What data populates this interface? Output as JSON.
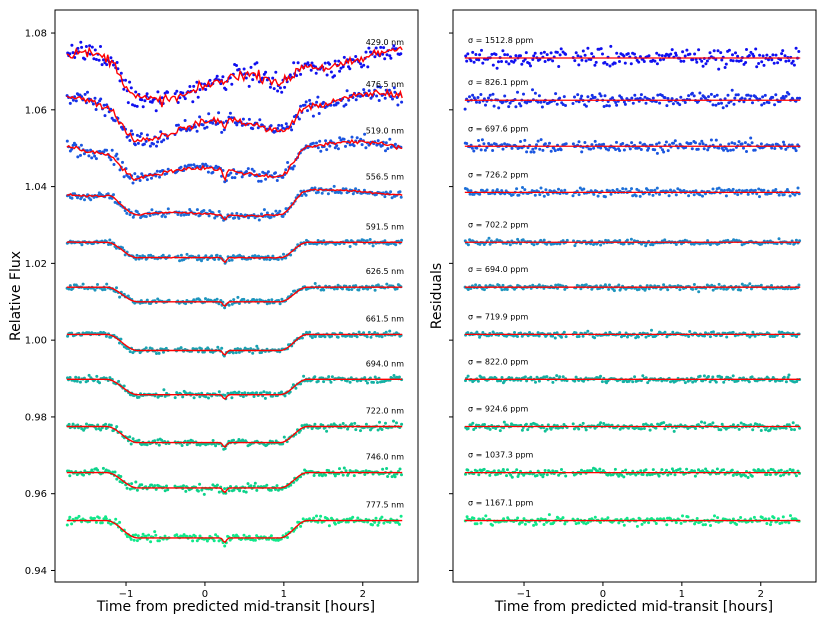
{
  "chart_data": [
    {
      "type": "scatter",
      "title": "",
      "xlabel": "Time from predicted mid-transit [hours]",
      "ylabel": "Relative Flux",
      "xlim": [
        -1.9,
        2.7
      ],
      "ylim": [
        0.937,
        1.086
      ],
      "xticks": [
        "−1",
        "0",
        "1",
        "2"
      ],
      "xtick_values": [
        -1,
        0,
        1,
        2
      ],
      "yticks": [
        "0.94",
        "0.96",
        "0.98",
        "1.00",
        "1.02",
        "1.04",
        "1.06",
        "1.08"
      ],
      "ytick_values": [
        0.94,
        0.96,
        0.98,
        1.0,
        1.02,
        1.04,
        1.06,
        1.08
      ],
      "x_range_data": [
        -1.75,
        2.5
      ],
      "transit": {
        "ingress_start": -1.25,
        "ingress_end": -0.85,
        "egress_start": 0.95,
        "egress_end": 1.3
      },
      "gap": [
        -0.45,
        -0.38
      ],
      "model_color": "#ff0000",
      "series": [
        {
          "label": "429.0 nm",
          "baseline": 1.0735,
          "depth": 0.0068,
          "scatter": 0.0028,
          "color": "#1010f0"
        },
        {
          "label": "476.5 nm",
          "baseline": 1.0625,
          "depth": 0.0068,
          "scatter": 0.0022,
          "color": "#1530e8"
        },
        {
          "label": "519.0 nm",
          "baseline": 1.0505,
          "depth": 0.0065,
          "scatter": 0.0018,
          "color": "#1a55e0"
        },
        {
          "label": "556.5 nm",
          "baseline": 1.0385,
          "depth": 0.0055,
          "scatter": 0.0012,
          "color": "#1e70d8"
        },
        {
          "label": "591.5 nm",
          "baseline": 1.0255,
          "depth": 0.004,
          "scatter": 0.0009,
          "color": "#1e88c8"
        },
        {
          "label": "626.5 nm",
          "baseline": 1.0138,
          "depth": 0.0038,
          "scatter": 0.0009,
          "color": "#1d95bd"
        },
        {
          "label": "661.5 nm",
          "baseline": 1.0015,
          "depth": 0.0042,
          "scatter": 0.0009,
          "color": "#18a2b2"
        },
        {
          "label": "694.0 nm",
          "baseline": 0.9898,
          "depth": 0.004,
          "scatter": 0.001,
          "color": "#14b0a4"
        },
        {
          "label": "722.0 nm",
          "baseline": 0.9775,
          "depth": 0.0042,
          "scatter": 0.0011,
          "color": "#10c096"
        },
        {
          "label": "746.0 nm",
          "baseline": 0.9655,
          "depth": 0.004,
          "scatter": 0.0012,
          "color": "#0cd28a"
        },
        {
          "label": "777.5 nm",
          "baseline": 0.953,
          "depth": 0.0045,
          "scatter": 0.0013,
          "color": "#10e88a"
        }
      ]
    },
    {
      "type": "scatter",
      "title": "",
      "xlabel": "Time from predicted mid-transit [hours]",
      "ylabel": "Residuals",
      "xlim": [
        -1.9,
        2.7
      ],
      "xticks": [
        "−1",
        "0",
        "1",
        "2"
      ],
      "xtick_values": [
        -1,
        0,
        1,
        2
      ],
      "series": [
        {
          "label": "σ = 1512.8 ppm",
          "sigma_ppm": 1512.8
        },
        {
          "label": "σ = 826.1 ppm",
          "sigma_ppm": 826.1
        },
        {
          "label": "σ = 697.6 ppm",
          "sigma_ppm": 697.6
        },
        {
          "label": "σ = 726.2 ppm",
          "sigma_ppm": 726.2
        },
        {
          "label": "σ = 702.2 ppm",
          "sigma_ppm": 702.2
        },
        {
          "label": "σ = 694.0 ppm",
          "sigma_ppm": 694.0
        },
        {
          "label": "σ = 719.9 ppm",
          "sigma_ppm": 719.9
        },
        {
          "label": "σ = 822.0 ppm",
          "sigma_ppm": 822.0
        },
        {
          "label": "σ = 924.6 ppm",
          "sigma_ppm": 924.6
        },
        {
          "label": "σ = 1037.3 ppm",
          "sigma_ppm": 1037.3
        },
        {
          "label": "σ = 1167.1 ppm",
          "sigma_ppm": 1167.1
        }
      ]
    }
  ]
}
